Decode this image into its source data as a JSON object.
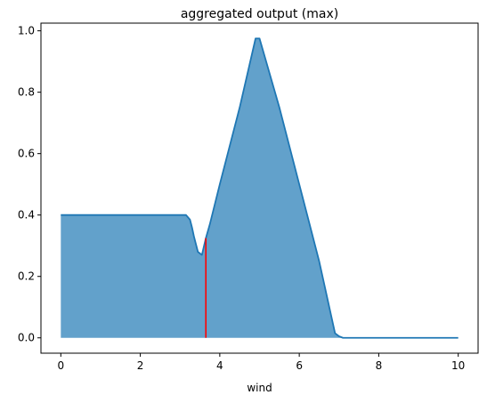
{
  "chart_data": {
    "type": "area",
    "title": "aggregated output (max)",
    "xlabel": "wind",
    "ylabel": "",
    "xlim": [
      -0.5,
      10.5
    ],
    "ylim": [
      -0.05,
      1.025
    ],
    "xticks": [
      0,
      2,
      4,
      6,
      8,
      10
    ],
    "yticks": [
      0.0,
      0.2,
      0.4,
      0.6,
      0.8,
      1.0
    ],
    "xtick_labels": [
      "0",
      "2",
      "4",
      "6",
      "8",
      "10"
    ],
    "ytick_labels": [
      "0.0",
      "0.2",
      "0.4",
      "0.6",
      "0.8",
      "1.0"
    ],
    "grid": false,
    "series": [
      {
        "x": [
          0,
          0.5,
          1,
          1.5,
          2,
          2.5,
          3,
          3.15,
          3.25,
          3.3,
          3.35,
          3.45,
          3.55,
          3.65,
          3.75,
          4,
          4.5,
          4.9,
          5.0,
          5.5,
          6,
          6.5,
          6.9,
          7.0,
          7.1,
          7.5,
          8,
          9,
          10
        ],
        "y": [
          0.4,
          0.4,
          0.4,
          0.4,
          0.4,
          0.4,
          0.4,
          0.4,
          0.385,
          0.36,
          0.33,
          0.28,
          0.27,
          0.325,
          0.37,
          0.5,
          0.75,
          0.975,
          0.975,
          0.75,
          0.5,
          0.25,
          0.015,
          0.005,
          0.0,
          0.0,
          0.0,
          0.0,
          0.0
        ]
      }
    ],
    "marker_line": {
      "x": 3.65,
      "y0": 0.0,
      "y1": 0.325
    },
    "colors": {
      "fill": "#62a1cb",
      "line": "#1f77b4",
      "marker": "#ff0000",
      "axes": "#000000"
    }
  }
}
